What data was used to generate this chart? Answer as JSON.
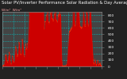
{
  "title": "Solar PV/Inverter Performance Solar Radiation & Day Average per Minute",
  "subtitle": "W/m²  W/m²",
  "bg_color": "#222222",
  "plot_bg": "#444444",
  "grid_color": "#00cccc",
  "fill_color": "#cc0000",
  "line_color": "#ff2200",
  "title_color": "#ffffff",
  "tick_color": "#ffffff",
  "ymax": 850,
  "title_fontsize": 3.8,
  "tick_fontsize": 3.2
}
